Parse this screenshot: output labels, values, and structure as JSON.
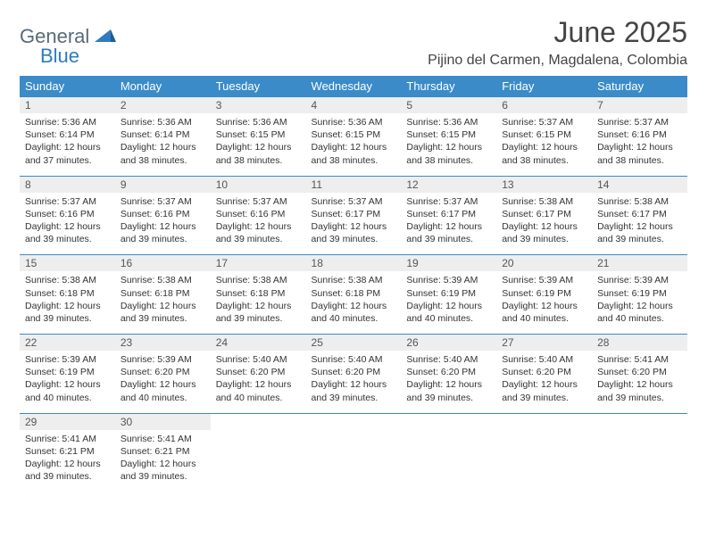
{
  "logo": {
    "text1": "General",
    "text2": "Blue"
  },
  "title": "June 2025",
  "location": "Pijino del Carmen, Magdalena, Colombia",
  "colors": {
    "header_bg": "#3b8bc9",
    "header_text": "#ffffff",
    "daynum_bg": "#eeeeee",
    "border": "#3b8bc9",
    "body_text": "#333333",
    "logo_gray": "#5a6a78",
    "logo_blue": "#2f7bbf"
  },
  "day_headers": [
    "Sunday",
    "Monday",
    "Tuesday",
    "Wednesday",
    "Thursday",
    "Friday",
    "Saturday"
  ],
  "weeks": [
    [
      {
        "n": "1",
        "sr": "Sunrise: 5:36 AM",
        "ss": "Sunset: 6:14 PM",
        "dl": "Daylight: 12 hours and 37 minutes."
      },
      {
        "n": "2",
        "sr": "Sunrise: 5:36 AM",
        "ss": "Sunset: 6:14 PM",
        "dl": "Daylight: 12 hours and 38 minutes."
      },
      {
        "n": "3",
        "sr": "Sunrise: 5:36 AM",
        "ss": "Sunset: 6:15 PM",
        "dl": "Daylight: 12 hours and 38 minutes."
      },
      {
        "n": "4",
        "sr": "Sunrise: 5:36 AM",
        "ss": "Sunset: 6:15 PM",
        "dl": "Daylight: 12 hours and 38 minutes."
      },
      {
        "n": "5",
        "sr": "Sunrise: 5:36 AM",
        "ss": "Sunset: 6:15 PM",
        "dl": "Daylight: 12 hours and 38 minutes."
      },
      {
        "n": "6",
        "sr": "Sunrise: 5:37 AM",
        "ss": "Sunset: 6:15 PM",
        "dl": "Daylight: 12 hours and 38 minutes."
      },
      {
        "n": "7",
        "sr": "Sunrise: 5:37 AM",
        "ss": "Sunset: 6:16 PM",
        "dl": "Daylight: 12 hours and 38 minutes."
      }
    ],
    [
      {
        "n": "8",
        "sr": "Sunrise: 5:37 AM",
        "ss": "Sunset: 6:16 PM",
        "dl": "Daylight: 12 hours and 39 minutes."
      },
      {
        "n": "9",
        "sr": "Sunrise: 5:37 AM",
        "ss": "Sunset: 6:16 PM",
        "dl": "Daylight: 12 hours and 39 minutes."
      },
      {
        "n": "10",
        "sr": "Sunrise: 5:37 AM",
        "ss": "Sunset: 6:16 PM",
        "dl": "Daylight: 12 hours and 39 minutes."
      },
      {
        "n": "11",
        "sr": "Sunrise: 5:37 AM",
        "ss": "Sunset: 6:17 PM",
        "dl": "Daylight: 12 hours and 39 minutes."
      },
      {
        "n": "12",
        "sr": "Sunrise: 5:37 AM",
        "ss": "Sunset: 6:17 PM",
        "dl": "Daylight: 12 hours and 39 minutes."
      },
      {
        "n": "13",
        "sr": "Sunrise: 5:38 AM",
        "ss": "Sunset: 6:17 PM",
        "dl": "Daylight: 12 hours and 39 minutes."
      },
      {
        "n": "14",
        "sr": "Sunrise: 5:38 AM",
        "ss": "Sunset: 6:17 PM",
        "dl": "Daylight: 12 hours and 39 minutes."
      }
    ],
    [
      {
        "n": "15",
        "sr": "Sunrise: 5:38 AM",
        "ss": "Sunset: 6:18 PM",
        "dl": "Daylight: 12 hours and 39 minutes."
      },
      {
        "n": "16",
        "sr": "Sunrise: 5:38 AM",
        "ss": "Sunset: 6:18 PM",
        "dl": "Daylight: 12 hours and 39 minutes."
      },
      {
        "n": "17",
        "sr": "Sunrise: 5:38 AM",
        "ss": "Sunset: 6:18 PM",
        "dl": "Daylight: 12 hours and 39 minutes."
      },
      {
        "n": "18",
        "sr": "Sunrise: 5:38 AM",
        "ss": "Sunset: 6:18 PM",
        "dl": "Daylight: 12 hours and 40 minutes."
      },
      {
        "n": "19",
        "sr": "Sunrise: 5:39 AM",
        "ss": "Sunset: 6:19 PM",
        "dl": "Daylight: 12 hours and 40 minutes."
      },
      {
        "n": "20",
        "sr": "Sunrise: 5:39 AM",
        "ss": "Sunset: 6:19 PM",
        "dl": "Daylight: 12 hours and 40 minutes."
      },
      {
        "n": "21",
        "sr": "Sunrise: 5:39 AM",
        "ss": "Sunset: 6:19 PM",
        "dl": "Daylight: 12 hours and 40 minutes."
      }
    ],
    [
      {
        "n": "22",
        "sr": "Sunrise: 5:39 AM",
        "ss": "Sunset: 6:19 PM",
        "dl": "Daylight: 12 hours and 40 minutes."
      },
      {
        "n": "23",
        "sr": "Sunrise: 5:39 AM",
        "ss": "Sunset: 6:20 PM",
        "dl": "Daylight: 12 hours and 40 minutes."
      },
      {
        "n": "24",
        "sr": "Sunrise: 5:40 AM",
        "ss": "Sunset: 6:20 PM",
        "dl": "Daylight: 12 hours and 40 minutes."
      },
      {
        "n": "25",
        "sr": "Sunrise: 5:40 AM",
        "ss": "Sunset: 6:20 PM",
        "dl": "Daylight: 12 hours and 39 minutes."
      },
      {
        "n": "26",
        "sr": "Sunrise: 5:40 AM",
        "ss": "Sunset: 6:20 PM",
        "dl": "Daylight: 12 hours and 39 minutes."
      },
      {
        "n": "27",
        "sr": "Sunrise: 5:40 AM",
        "ss": "Sunset: 6:20 PM",
        "dl": "Daylight: 12 hours and 39 minutes."
      },
      {
        "n": "28",
        "sr": "Sunrise: 5:41 AM",
        "ss": "Sunset: 6:20 PM",
        "dl": "Daylight: 12 hours and 39 minutes."
      }
    ],
    [
      {
        "n": "29",
        "sr": "Sunrise: 5:41 AM",
        "ss": "Sunset: 6:21 PM",
        "dl": "Daylight: 12 hours and 39 minutes."
      },
      {
        "n": "30",
        "sr": "Sunrise: 5:41 AM",
        "ss": "Sunset: 6:21 PM",
        "dl": "Daylight: 12 hours and 39 minutes."
      },
      null,
      null,
      null,
      null,
      null
    ]
  ]
}
